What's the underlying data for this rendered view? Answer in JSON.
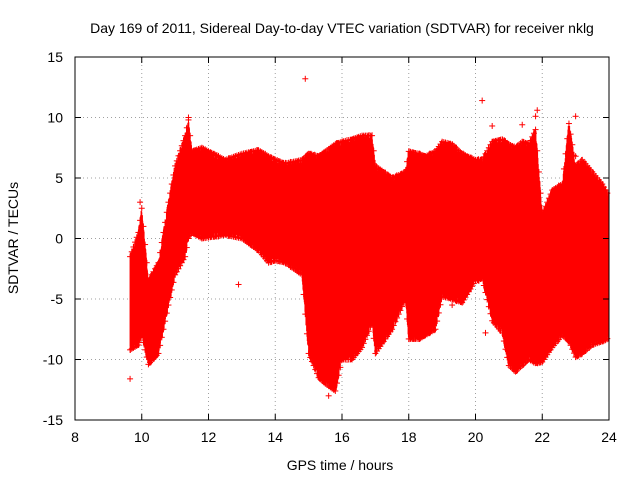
{
  "chart_data": {
    "type": "scatter",
    "title": "Day 169 of 2011, Sidereal Day-to-day VTEC variation (SDTVAR) for receiver nklg",
    "xlabel": "GPS time / hours",
    "ylabel": "SDTVAR / TECUs",
    "xlim": [
      8,
      24
    ],
    "ylim": [
      -15,
      15
    ],
    "xticks": [
      8,
      10,
      12,
      14,
      16,
      18,
      20,
      22,
      24
    ],
    "yticks": [
      -15,
      -10,
      -5,
      0,
      5,
      10,
      15
    ],
    "xtick_labels": [
      "8",
      "10",
      "12",
      "14",
      "16",
      "18",
      "20",
      "22",
      "24"
    ],
    "ytick_labels": [
      "-15",
      "-10",
      "-5",
      "0",
      "5",
      "10",
      "15"
    ],
    "grid": true,
    "marker": "+",
    "color": "#ff0000",
    "envelope": {
      "x": [
        9.65,
        9.9,
        10.0,
        10.2,
        10.5,
        10.8,
        11.0,
        11.3,
        11.4,
        11.5,
        11.8,
        12.5,
        13.0,
        13.5,
        13.8,
        14.0,
        14.3,
        14.8,
        15.0,
        15.3,
        15.5,
        15.8,
        16.0,
        16.3,
        16.6,
        16.9,
        17.0,
        17.5,
        17.9,
        18.0,
        18.3,
        18.5,
        18.8,
        19.0,
        19.3,
        19.6,
        20.0,
        20.2,
        20.5,
        20.8,
        21.0,
        21.2,
        21.4,
        21.6,
        21.8,
        22.0,
        22.3,
        22.6,
        22.8,
        23.0,
        23.2,
        23.5,
        23.8,
        24.0
      ],
      "ymin": [
        -9.2,
        -8.8,
        -8.0,
        -10.4,
        -9.5,
        -5.5,
        -3.0,
        -1.5,
        0.0,
        0.5,
        0.0,
        0.3,
        0.0,
        -1.0,
        -2.0,
        -1.8,
        -2.0,
        -3.0,
        -9.5,
        -11.5,
        -12.0,
        -12.6,
        -10.0,
        -10.0,
        -9.0,
        -7.0,
        -9.5,
        -7.5,
        -5.0,
        -8.3,
        -8.3,
        -8.0,
        -7.5,
        -4.8,
        -5.0,
        -5.3,
        -3.5,
        -3.3,
        -6.8,
        -7.8,
        -10.5,
        -11.0,
        -10.5,
        -10.0,
        -10.3,
        -10.2,
        -9.0,
        -8.0,
        -8.5,
        -9.8,
        -9.5,
        -8.8,
        -8.5,
        -8.2
      ],
      "ymax": [
        -1.5,
        0.5,
        2.5,
        -3.5,
        -2.0,
        3.0,
        6.0,
        8.5,
        9.8,
        7.2,
        7.5,
        6.5,
        7.0,
        7.3,
        6.8,
        6.5,
        6.2,
        6.5,
        7.0,
        6.8,
        7.2,
        7.8,
        8.0,
        8.2,
        8.5,
        8.5,
        6.0,
        5.0,
        5.5,
        7.2,
        7.0,
        6.8,
        7.2,
        8.0,
        7.8,
        7.0,
        6.5,
        6.5,
        8.0,
        8.2,
        7.8,
        7.5,
        8.0,
        7.8,
        9.0,
        2.0,
        4.0,
        4.5,
        9.5,
        6.0,
        6.5,
        5.5,
        4.5,
        3.5
      ]
    },
    "outliers": [
      {
        "x": 14.9,
        "y": 13.2
      },
      {
        "x": 20.2,
        "y": 11.4
      },
      {
        "x": 20.5,
        "y": 9.3
      },
      {
        "x": 21.4,
        "y": 9.4
      },
      {
        "x": 21.8,
        "y": 10.1
      },
      {
        "x": 21.85,
        "y": 10.6
      },
      {
        "x": 23.0,
        "y": 10.1
      },
      {
        "x": 23.0,
        "y": 6.8
      },
      {
        "x": 12.9,
        "y": -3.8
      },
      {
        "x": 20.3,
        "y": -7.8
      },
      {
        "x": 19.3,
        "y": -5.5
      },
      {
        "x": 9.65,
        "y": -11.6
      },
      {
        "x": 9.95,
        "y": 3.0
      },
      {
        "x": 11.4,
        "y": 10.0
      },
      {
        "x": 15.6,
        "y": -13.0
      },
      {
        "x": 20.1,
        "y": -3.5
      }
    ]
  }
}
